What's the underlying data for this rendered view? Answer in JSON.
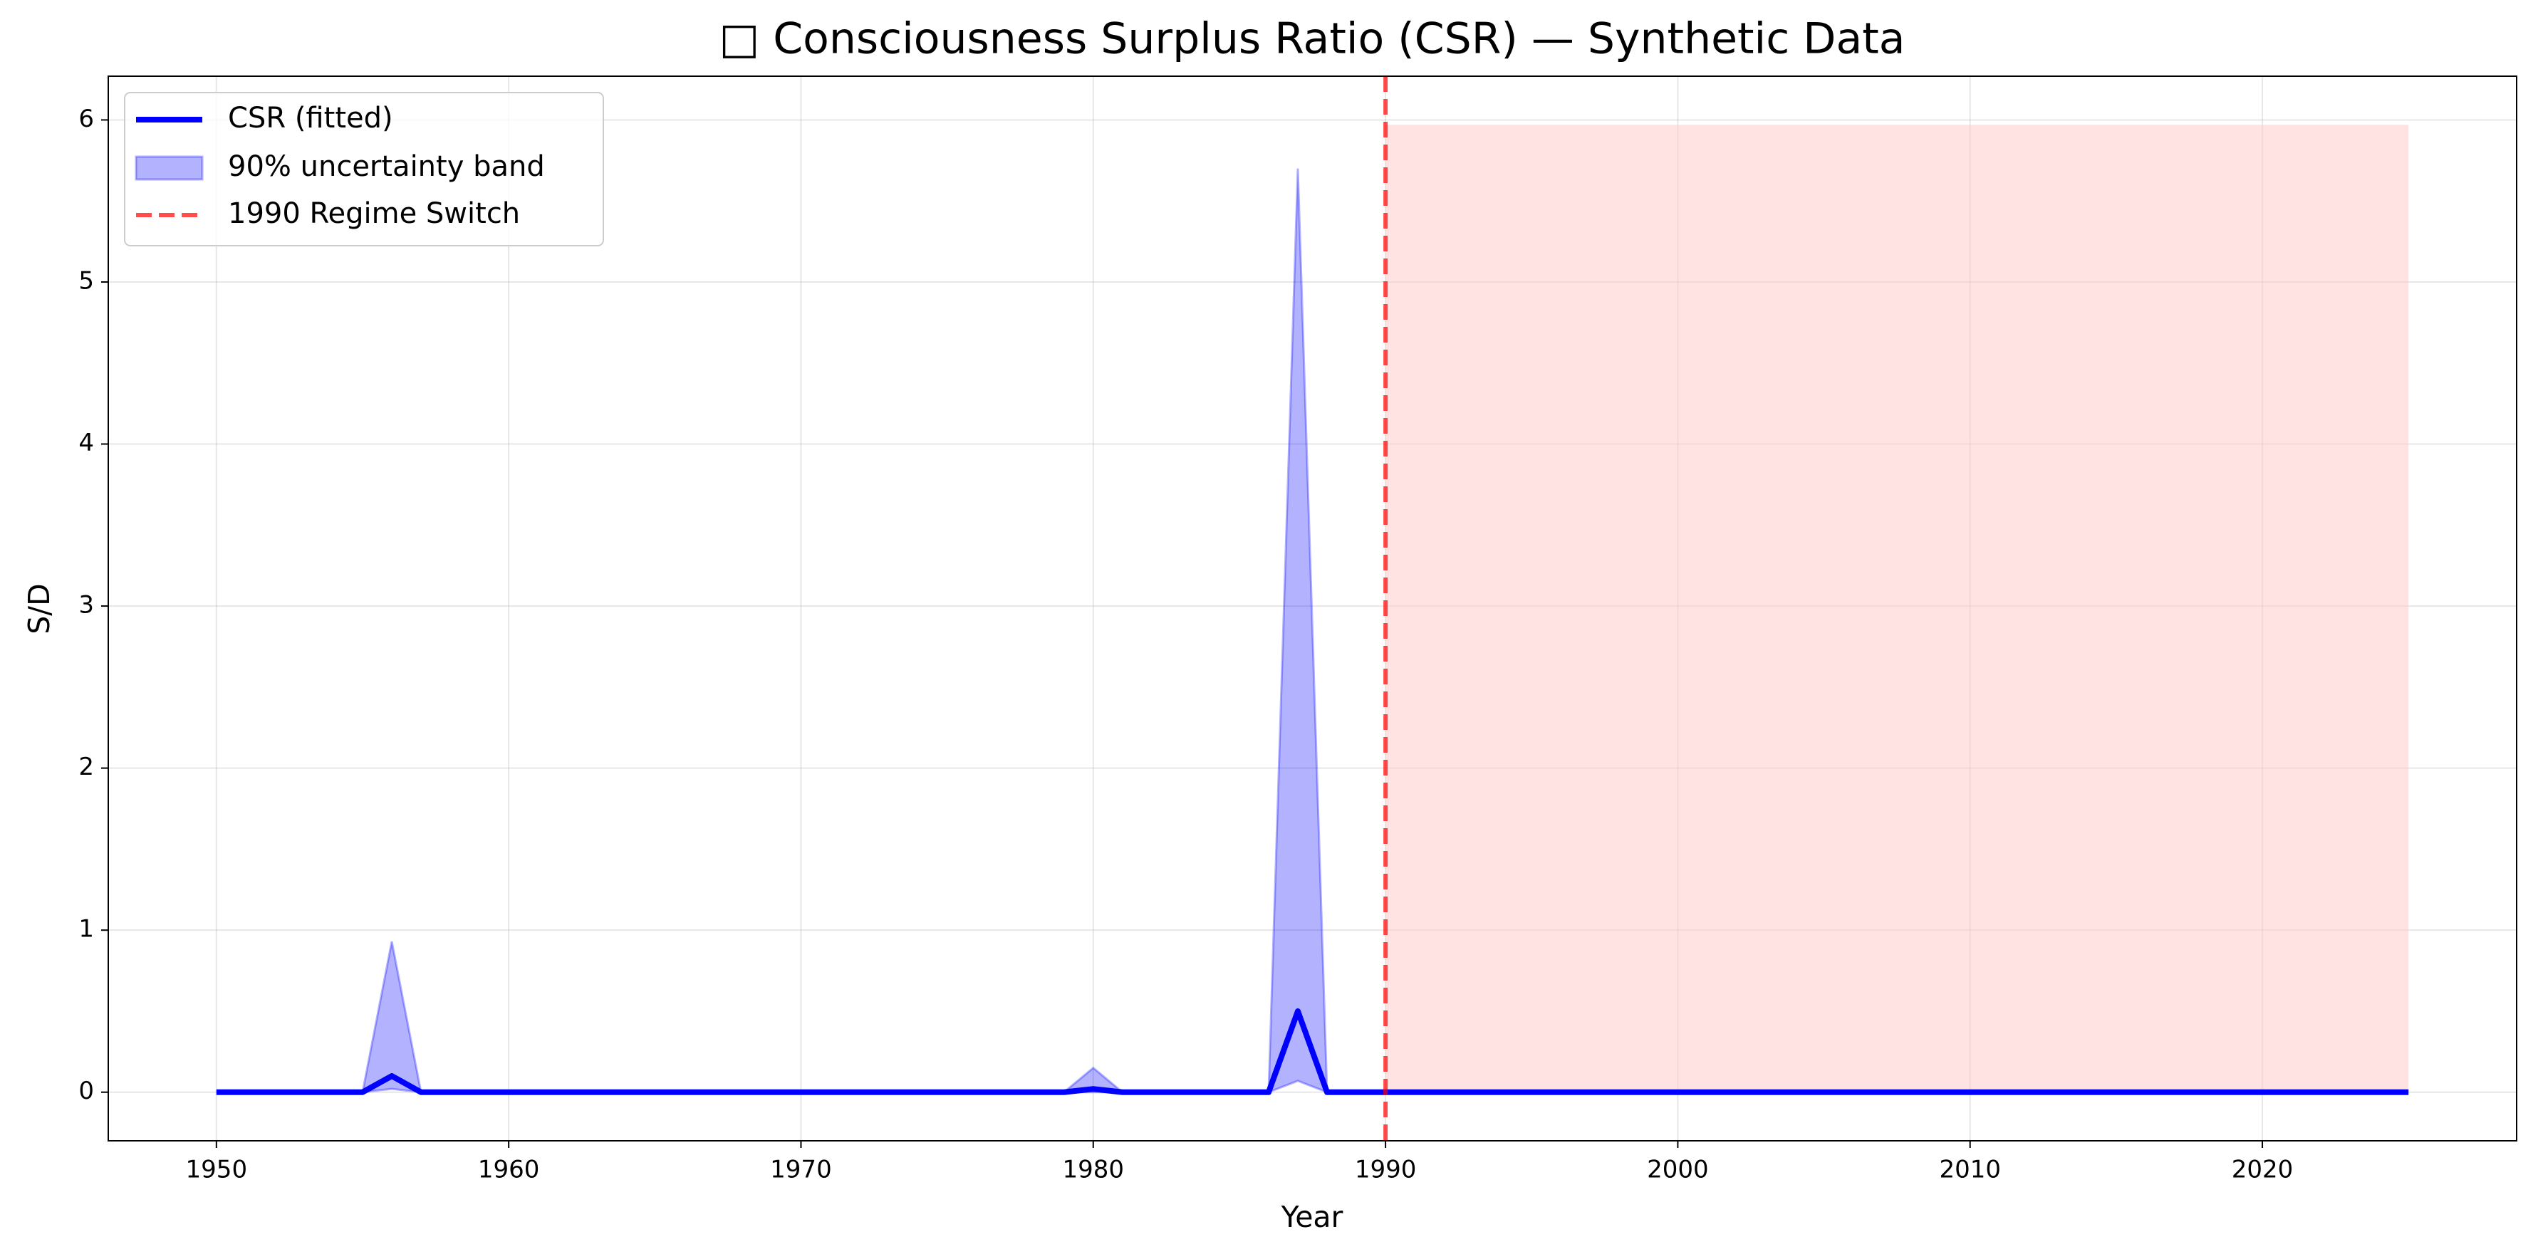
{
  "chart_data": {
    "type": "line",
    "title": "□ Consciousness Surplus Ratio (CSR) — Synthetic Data",
    "x_label": "Year",
    "y_label": "S/D",
    "x": [
      1950,
      1951,
      1952,
      1953,
      1954,
      1955,
      1956,
      1957,
      1958,
      1959,
      1960,
      1961,
      1962,
      1963,
      1964,
      1965,
      1966,
      1967,
      1968,
      1969,
      1970,
      1971,
      1972,
      1973,
      1974,
      1975,
      1976,
      1977,
      1978,
      1979,
      1980,
      1981,
      1982,
      1983,
      1984,
      1985,
      1986,
      1987,
      1988,
      1989,
      1990,
      1991,
      1992,
      1993,
      1994,
      1995,
      1996,
      1997,
      1998,
      1999,
      2000,
      2001,
      2002,
      2003,
      2004,
      2005,
      2006,
      2007,
      2008,
      2009,
      2010,
      2011,
      2012,
      2013,
      2014,
      2015,
      2016,
      2017,
      2018,
      2019,
      2020,
      2021,
      2022,
      2023,
      2024,
      2025
    ],
    "series": [
      {
        "name": "CSR (fitted)",
        "color": "#0000ff",
        "values": [
          0,
          0,
          0,
          0,
          0,
          0,
          0.1,
          0,
          0,
          0,
          0,
          0,
          0,
          0,
          0,
          0,
          0,
          0,
          0,
          0,
          0,
          0,
          0,
          0,
          0,
          0,
          0,
          0,
          0,
          0,
          0.02,
          0,
          0,
          0,
          0,
          0,
          0,
          0.5,
          0,
          0,
          0,
          0,
          0,
          0,
          0,
          0,
          0,
          0,
          0,
          0,
          0,
          0,
          0,
          0,
          0,
          0,
          0,
          0,
          0,
          0,
          0,
          0,
          0,
          0,
          0,
          0,
          0,
          0,
          0,
          0,
          0,
          0,
          0,
          0,
          0,
          0
        ]
      }
    ],
    "band": {
      "name": "90% uncertainty band",
      "color": "#0000ff",
      "upper": [
        0,
        0,
        0,
        0,
        0,
        0,
        0.93,
        0,
        0,
        0,
        0,
        0,
        0,
        0,
        0,
        0,
        0,
        0,
        0,
        0,
        0,
        0,
        0,
        0,
        0,
        0,
        0,
        0,
        0,
        0,
        0.15,
        0,
        0,
        0,
        0,
        0,
        0,
        5.7,
        0,
        0,
        0,
        0,
        0,
        0,
        0,
        0,
        0,
        0,
        0,
        0,
        0,
        0,
        0,
        0,
        0,
        0,
        0,
        0,
        0,
        0,
        0,
        0,
        0,
        0,
        0,
        0,
        0,
        0,
        0,
        0,
        0,
        0,
        0,
        0,
        0,
        0
      ],
      "lower": [
        0,
        0,
        0,
        0,
        0,
        0,
        0.02,
        0,
        0,
        0,
        0,
        0,
        0,
        0,
        0,
        0,
        0,
        0,
        0,
        0,
        0,
        0,
        0,
        0,
        0,
        0,
        0,
        0,
        0,
        0,
        0,
        0,
        0,
        0,
        0,
        0,
        0,
        0.07,
        0,
        0,
        0,
        0,
        0,
        0,
        0,
        0,
        0,
        0,
        0,
        0,
        0,
        0,
        0,
        0,
        0,
        0,
        0,
        0,
        0,
        0,
        0,
        0,
        0,
        0,
        0,
        0,
        0,
        0,
        0,
        0,
        0,
        0,
        0,
        0,
        0,
        0
      ]
    },
    "vline": {
      "name": "1990 Regime Switch",
      "x": 1990,
      "color": "#ff0000"
    },
    "shade": {
      "x": [
        1990,
        2025
      ],
      "y": [
        0,
        5.97
      ],
      "color": "#ffcccc"
    },
    "xlim": [
      1946.3,
      2028.7
    ],
    "ylim": [
      -0.3,
      6.27
    ],
    "xticks": [
      1950,
      1960,
      1970,
      1980,
      1990,
      2000,
      2010,
      2020
    ],
    "yticks": [
      0,
      1,
      2,
      3,
      4,
      5,
      6
    ],
    "grid": true,
    "legend": "upper left"
  }
}
